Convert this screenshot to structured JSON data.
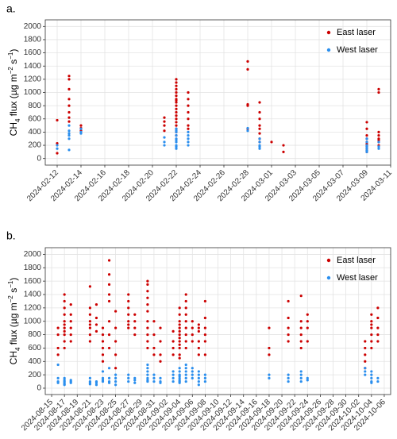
{
  "chart_data": [
    {
      "type": "scatter",
      "label": "a.",
      "ylabel": [
        "CH",
        "4",
        " flux (µg m",
        "−2",
        " s",
        "−1",
        ")"
      ],
      "xlim": [
        "2024-02-11",
        "2024-03-11"
      ],
      "xticks": [
        "2024-02-12",
        "2024-02-14",
        "2024-02-16",
        "2024-02-18",
        "2024-02-20",
        "2024-02-22",
        "2024-02-24",
        "2024-02-26",
        "2024-02-28",
        "2024-03-01",
        "2024-03-03",
        "2024-03-05",
        "2024-03-07",
        "2024-03-09",
        "2024-03-11"
      ],
      "ylim": [
        -100,
        2100
      ],
      "yticks": [
        0,
        200,
        400,
        600,
        800,
        1000,
        1200,
        1400,
        1600,
        1800,
        2000
      ],
      "grid": true,
      "legend": "top-right",
      "series": [
        {
          "name": "East laser",
          "color": "#cc0000",
          "x": [
            "2024-02-12",
            "2024-02-12",
            "2024-02-12",
            "2024-02-13",
            "2024-02-13",
            "2024-02-13",
            "2024-02-13",
            "2024-02-13",
            "2024-02-13",
            "2024-02-13",
            "2024-02-13",
            "2024-02-14",
            "2024-02-14",
            "2024-02-14",
            "2024-02-21",
            "2024-02-21",
            "2024-02-21",
            "2024-02-21",
            "2024-02-22",
            "2024-02-22",
            "2024-02-22",
            "2024-02-22",
            "2024-02-22",
            "2024-02-22",
            "2024-02-22",
            "2024-02-22",
            "2024-02-22",
            "2024-02-22",
            "2024-02-22",
            "2024-02-22",
            "2024-02-22",
            "2024-02-22",
            "2024-02-22",
            "2024-02-22",
            "2024-02-22",
            "2024-02-22",
            "2024-02-22",
            "2024-02-23",
            "2024-02-23",
            "2024-02-23",
            "2024-02-23",
            "2024-02-23",
            "2024-02-23",
            "2024-02-23",
            "2024-02-28",
            "2024-02-28",
            "2024-02-28",
            "2024-02-28",
            "2024-02-28",
            "2024-02-29",
            "2024-02-29",
            "2024-02-29",
            "2024-02-29",
            "2024-02-29",
            "2024-02-29",
            "2024-02-29",
            "2024-02-29",
            "2024-03-01",
            "2024-03-02",
            "2024-03-02",
            "2024-03-09",
            "2024-03-09",
            "2024-03-09",
            "2024-03-09",
            "2024-03-09",
            "2024-03-09",
            "2024-03-09",
            "2024-03-09",
            "2024-03-09",
            "2024-03-09",
            "2024-03-09",
            "2024-03-10",
            "2024-03-10",
            "2024-03-10",
            "2024-03-10",
            "2024-03-10",
            "2024-03-10",
            "2024-03-10",
            "2024-03-10"
          ],
          "values": [
            580,
            230,
            80,
            1250,
            1200,
            1050,
            900,
            800,
            700,
            620,
            560,
            500,
            460,
            420,
            620,
            560,
            500,
            420,
            1200,
            1150,
            1100,
            1050,
            1000,
            950,
            900,
            880,
            850,
            800,
            750,
            700,
            650,
            600,
            550,
            500,
            450,
            400,
            350,
            1000,
            900,
            800,
            700,
            600,
            500,
            450,
            1470,
            1350,
            820,
            800,
            450,
            850,
            700,
            600,
            500,
            450,
            380,
            300,
            250,
            250,
            200,
            100,
            550,
            450,
            350,
            300,
            250,
            220,
            200,
            180,
            150,
            120,
            100,
            1000,
            1050,
            400,
            350,
            300,
            280,
            250,
            200
          ]
        },
        {
          "name": "West laser",
          "color": "#2b8fee",
          "x": [
            "2024-02-12",
            "2024-02-12",
            "2024-02-13",
            "2024-02-13",
            "2024-02-13",
            "2024-02-13",
            "2024-02-13",
            "2024-02-13",
            "2024-02-14",
            "2024-02-14",
            "2024-02-14",
            "2024-02-21",
            "2024-02-21",
            "2024-02-21",
            "2024-02-22",
            "2024-02-22",
            "2024-02-22",
            "2024-02-22",
            "2024-02-22",
            "2024-02-22",
            "2024-02-22",
            "2024-02-22",
            "2024-02-22",
            "2024-02-22",
            "2024-02-23",
            "2024-02-23",
            "2024-02-23",
            "2024-02-23",
            "2024-02-23",
            "2024-02-28",
            "2024-02-28",
            "2024-02-29",
            "2024-02-29",
            "2024-02-29",
            "2024-02-29",
            "2024-02-29",
            "2024-03-09",
            "2024-03-09",
            "2024-03-09",
            "2024-03-09",
            "2024-03-09",
            "2024-03-09",
            "2024-03-09",
            "2024-03-10",
            "2024-03-10",
            "2024-03-10"
          ],
          "values": [
            200,
            150,
            500,
            420,
            380,
            350,
            300,
            130,
            450,
            400,
            380,
            320,
            250,
            200,
            450,
            420,
            400,
            350,
            300,
            280,
            250,
            200,
            180,
            150,
            400,
            350,
            300,
            250,
            200,
            460,
            420,
            300,
            250,
            200,
            180,
            150,
            300,
            250,
            200,
            180,
            150,
            120,
            100,
            250,
            180,
            150
          ]
        }
      ]
    },
    {
      "type": "scatter",
      "label": "b.",
      "ylabel": [
        "CH",
        "4",
        " flux (µg m",
        "−2",
        " s",
        "−1",
        ")"
      ],
      "xlim": [
        "2024-08-14",
        "2024-10-07"
      ],
      "xticks": [
        "2024-08-15",
        "2024-08-17",
        "2024-08-19",
        "2024-08-21",
        "2024-08-23",
        "2024-08-25",
        "2024-08-27",
        "2024-08-29",
        "2024-08-31",
        "2024-09-02",
        "2024-09-04",
        "2024-09-06",
        "2024-09-08",
        "2024-09-10",
        "2024-09-12",
        "2024-09-14",
        "2024-09-16",
        "2024-09-18",
        "2024-09-20",
        "2024-09-22",
        "2024-09-24",
        "2024-09-26",
        "2024-09-28",
        "2024-09-30",
        "2024-10-02",
        "2024-10-04",
        "2024-10-06"
      ],
      "ylim": [
        -95,
        2100
      ],
      "yticks": [
        0,
        200,
        400,
        600,
        800,
        1000,
        1200,
        1400,
        1600,
        1800,
        2000
      ],
      "grid": true,
      "legend": "top-right",
      "series": [
        {
          "name": "East laser",
          "color": "#cc0000",
          "x": [
            "2024-08-16",
            "2024-08-16",
            "2024-08-16",
            "2024-08-16",
            "2024-08-17",
            "2024-08-17",
            "2024-08-17",
            "2024-08-17",
            "2024-08-17",
            "2024-08-17",
            "2024-08-17",
            "2024-08-17",
            "2024-08-17",
            "2024-08-17",
            "2024-08-17",
            "2024-08-18",
            "2024-08-18",
            "2024-08-18",
            "2024-08-18",
            "2024-08-18",
            "2024-08-18",
            "2024-08-21",
            "2024-08-21",
            "2024-08-21",
            "2024-08-21",
            "2024-08-21",
            "2024-08-21",
            "2024-08-21",
            "2024-08-21",
            "2024-08-22",
            "2024-08-22",
            "2024-08-22",
            "2024-08-22",
            "2024-08-23",
            "2024-08-23",
            "2024-08-23",
            "2024-08-23",
            "2024-08-23",
            "2024-08-23",
            "2024-08-24",
            "2024-08-24",
            "2024-08-24",
            "2024-08-24",
            "2024-08-24",
            "2024-08-24",
            "2024-08-24",
            "2024-08-24",
            "2024-08-25",
            "2024-08-25",
            "2024-08-25",
            "2024-08-25",
            "2024-08-25",
            "2024-08-27",
            "2024-08-27",
            "2024-08-27",
            "2024-08-27",
            "2024-08-27",
            "2024-08-27",
            "2024-08-27",
            "2024-08-28",
            "2024-08-28",
            "2024-08-28",
            "2024-08-28",
            "2024-08-30",
            "2024-08-30",
            "2024-08-30",
            "2024-08-30",
            "2024-08-30",
            "2024-08-30",
            "2024-08-30",
            "2024-08-30",
            "2024-08-30",
            "2024-08-30",
            "2024-08-30",
            "2024-08-31",
            "2024-08-31",
            "2024-08-31",
            "2024-08-31",
            "2024-09-01",
            "2024-09-01",
            "2024-09-01",
            "2024-09-01",
            "2024-09-03",
            "2024-09-03",
            "2024-09-03",
            "2024-09-03",
            "2024-09-04",
            "2024-09-04",
            "2024-09-04",
            "2024-09-04",
            "2024-09-04",
            "2024-09-04",
            "2024-09-04",
            "2024-09-04",
            "2024-09-04",
            "2024-09-04",
            "2024-09-04",
            "2024-09-04",
            "2024-09-04",
            "2024-09-05",
            "2024-09-05",
            "2024-09-05",
            "2024-09-05",
            "2024-09-05",
            "2024-09-05",
            "2024-09-05",
            "2024-09-05",
            "2024-09-05",
            "2024-09-06",
            "2024-09-06",
            "2024-09-06",
            "2024-09-06",
            "2024-09-07",
            "2024-09-07",
            "2024-09-07",
            "2024-09-07",
            "2024-09-07",
            "2024-09-07",
            "2024-09-08",
            "2024-09-08",
            "2024-09-08",
            "2024-09-08",
            "2024-09-08",
            "2024-09-08",
            "2024-09-18",
            "2024-09-18",
            "2024-09-18",
            "2024-09-21",
            "2024-09-21",
            "2024-09-21",
            "2024-09-21",
            "2024-09-21",
            "2024-09-23",
            "2024-09-23",
            "2024-09-23",
            "2024-09-23",
            "2024-09-23",
            "2024-09-23",
            "2024-09-24",
            "2024-09-24",
            "2024-09-24",
            "2024-09-24",
            "2024-10-03",
            "2024-10-03",
            "2024-10-03",
            "2024-10-03",
            "2024-10-03",
            "2024-10-04",
            "2024-10-04",
            "2024-10-04",
            "2024-10-04",
            "2024-10-04",
            "2024-10-04",
            "2024-10-04",
            "2024-10-05",
            "2024-10-05",
            "2024-10-05",
            "2024-10-05",
            "2024-10-05"
          ],
          "values": [
            900,
            800,
            600,
            500,
            1400,
            1300,
            1200,
            1100,
            1000,
            950,
            900,
            850,
            800,
            700,
            600,
            1250,
            1100,
            1000,
            900,
            800,
            700,
            1520,
            1200,
            1100,
            1000,
            950,
            900,
            800,
            700,
            1250,
            1050,
            950,
            850,
            900,
            800,
            700,
            600,
            500,
            400,
            1910,
            1700,
            1550,
            1400,
            1300,
            1000,
            800,
            600,
            1150,
            900,
            700,
            500,
            300,
            1400,
            1300,
            1200,
            1100,
            1000,
            950,
            900,
            1100,
            1000,
            900,
            800,
            1600,
            1550,
            1450,
            1350,
            1250,
            1150,
            1000,
            900,
            800,
            700,
            600,
            1000,
            800,
            600,
            500,
            900,
            700,
            500,
            400,
            850,
            700,
            600,
            500,
            1200,
            1100,
            1000,
            950,
            900,
            850,
            800,
            750,
            700,
            650,
            600,
            500,
            450,
            1400,
            1300,
            1200,
            1100,
            1000,
            900,
            800,
            700,
            600,
            1000,
            900,
            800,
            700,
            950,
            900,
            850,
            700,
            600,
            500,
            1300,
            1050,
            900,
            800,
            700,
            500,
            900,
            600,
            500,
            1300,
            1050,
            900,
            800,
            700,
            1380,
            1000,
            900,
            800,
            700,
            600,
            1100,
            1000,
            900,
            700,
            700,
            600,
            500,
            400,
            300,
            1100,
            1000,
            950,
            900,
            800,
            700,
            600,
            1200,
            1050,
            900,
            800,
            700
          ]
        },
        {
          "name": "West laser",
          "color": "#2b8fee",
          "x": [
            "2024-08-16",
            "2024-08-16",
            "2024-08-16",
            "2024-08-16",
            "2024-08-17",
            "2024-08-17",
            "2024-08-17",
            "2024-08-17",
            "2024-08-17",
            "2024-08-17",
            "2024-08-18",
            "2024-08-18",
            "2024-08-18",
            "2024-08-21",
            "2024-08-21",
            "2024-08-21",
            "2024-08-21",
            "2024-08-22",
            "2024-08-22",
            "2024-08-22",
            "2024-08-23",
            "2024-08-23",
            "2024-08-23",
            "2024-08-23",
            "2024-08-24",
            "2024-08-24",
            "2024-08-24",
            "2024-08-24",
            "2024-08-25",
            "2024-08-25",
            "2024-08-25",
            "2024-08-25",
            "2024-08-27",
            "2024-08-27",
            "2024-08-27",
            "2024-08-28",
            "2024-08-28",
            "2024-08-28",
            "2024-08-30",
            "2024-08-30",
            "2024-08-30",
            "2024-08-30",
            "2024-08-30",
            "2024-08-30",
            "2024-08-30",
            "2024-08-31",
            "2024-08-31",
            "2024-08-31",
            "2024-09-01",
            "2024-09-01",
            "2024-09-01",
            "2024-09-03",
            "2024-09-03",
            "2024-09-03",
            "2024-09-03",
            "2024-09-04",
            "2024-09-04",
            "2024-09-04",
            "2024-09-04",
            "2024-09-04",
            "2024-09-04",
            "2024-09-04",
            "2024-09-04",
            "2024-09-05",
            "2024-09-05",
            "2024-09-05",
            "2024-09-05",
            "2024-09-05",
            "2024-09-05",
            "2024-09-06",
            "2024-09-06",
            "2024-09-06",
            "2024-09-06",
            "2024-09-07",
            "2024-09-07",
            "2024-09-07",
            "2024-09-07",
            "2024-09-07",
            "2024-09-08",
            "2024-09-08",
            "2024-09-08",
            "2024-09-18",
            "2024-09-18",
            "2024-09-21",
            "2024-09-21",
            "2024-09-21",
            "2024-09-23",
            "2024-09-23",
            "2024-09-23",
            "2024-09-23",
            "2024-09-24",
            "2024-09-24",
            "2024-10-03",
            "2024-10-03",
            "2024-10-03",
            "2024-10-04",
            "2024-10-04",
            "2024-10-04",
            "2024-10-04",
            "2024-10-04",
            "2024-10-05",
            "2024-10-05"
          ],
          "values": [
            350,
            150,
            100,
            80,
            150,
            120,
            100,
            80,
            60,
            50,
            120,
            100,
            80,
            150,
            100,
            80,
            60,
            100,
            80,
            50,
            250,
            150,
            120,
            100,
            300,
            150,
            100,
            80,
            200,
            150,
            100,
            50,
            200,
            150,
            100,
            150,
            120,
            80,
            350,
            300,
            250,
            200,
            150,
            120,
            100,
            200,
            150,
            100,
            150,
            100,
            80,
            250,
            200,
            150,
            100,
            300,
            250,
            200,
            180,
            150,
            120,
            100,
            80,
            350,
            300,
            250,
            200,
            150,
            100,
            300,
            250,
            200,
            150,
            250,
            200,
            150,
            100,
            50,
            200,
            150,
            100,
            200,
            150,
            200,
            150,
            100,
            250,
            200,
            150,
            100,
            150,
            120,
            300,
            250,
            200,
            250,
            200,
            150,
            100,
            80,
            150,
            100
          ]
        }
      ]
    }
  ]
}
